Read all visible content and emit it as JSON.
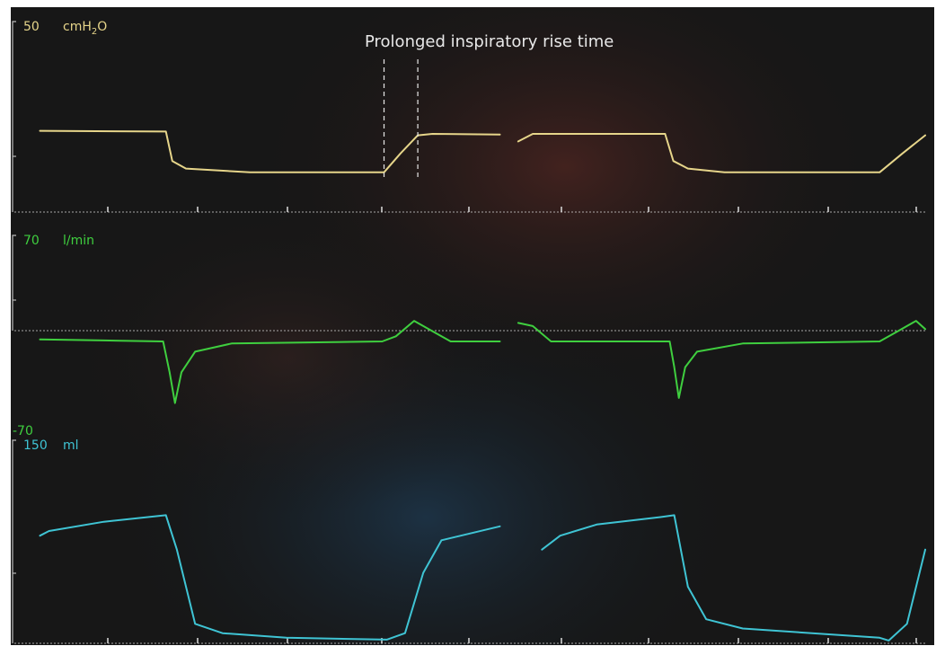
{
  "chart_data": [
    {
      "type": "line",
      "title": "",
      "unit_label": "cmH2O",
      "ylabel": "",
      "xlabel": "",
      "y_tick_labels": [
        "50"
      ],
      "ylim": [
        0,
        50
      ],
      "color": "#e6d58a",
      "grid": false,
      "annotation": {
        "text": "Prolonged inspiratory rise time",
        "marker_x": [
          40.7,
          44.4
        ]
      },
      "series": [
        {
          "values": [
            [
              3,
              30
            ],
            [
              16.8,
              29.5
            ],
            [
              17.5,
              10
            ],
            [
              19,
              5
            ],
            [
              26,
              2.5
            ],
            [
              40.7,
              2.5
            ],
            [
              42.5,
              15
            ],
            [
              44.4,
              27
            ],
            [
              46,
              28
            ],
            [
              53.4,
              27.5
            ],
            null,
            [
              55.4,
              23
            ],
            [
              57,
              28
            ],
            [
              71.5,
              28
            ],
            [
              72.4,
              10
            ],
            [
              74,
              5
            ],
            [
              78,
              2.5
            ],
            [
              95,
              2.5
            ],
            [
              97.5,
              15
            ],
            [
              100,
              27
            ]
          ]
        }
      ]
    },
    {
      "type": "line",
      "title": "",
      "unit_label": "l/min",
      "ylabel": "",
      "xlabel": "",
      "y_tick_labels": [
        "70",
        "-70"
      ],
      "ylim": [
        -70,
        70
      ],
      "color": "#3fcf3f",
      "grid": false,
      "series": [
        {
          "values": [
            [
              3,
              2
            ],
            [
              10,
              1
            ],
            [
              16.5,
              0
            ],
            [
              17.2,
              -30
            ],
            [
              17.8,
              -60
            ],
            [
              18.5,
              -30
            ],
            [
              20,
              -10
            ],
            [
              24,
              -2
            ],
            [
              40.5,
              0
            ],
            [
              42,
              5
            ],
            [
              44,
              20
            ],
            [
              46,
              10
            ],
            [
              48,
              0
            ],
            [
              53.4,
              0
            ],
            null,
            [
              55.4,
              18
            ],
            [
              57,
              15
            ],
            [
              59,
              0
            ],
            [
              72,
              0
            ],
            [
              72.5,
              -25
            ],
            [
              73,
              -55
            ],
            [
              73.7,
              -25
            ],
            [
              75,
              -10
            ],
            [
              80,
              -2
            ],
            [
              95,
              0
            ],
            [
              97,
              10
            ],
            [
              99,
              20
            ],
            [
              100,
              12
            ]
          ]
        }
      ]
    },
    {
      "type": "line",
      "title": "",
      "unit_label": "ml",
      "ylabel": "",
      "xlabel": "",
      "y_tick_labels": [
        "150"
      ],
      "ylim": [
        0,
        150
      ],
      "color": "#3fc4d4",
      "grid": false,
      "series": [
        {
          "values": [
            [
              3,
              115
            ],
            [
              4,
              120
            ],
            [
              10,
              130
            ],
            [
              16.8,
              137
            ],
            [
              18,
              100
            ],
            [
              20,
              20
            ],
            [
              23,
              10
            ],
            [
              30,
              5
            ],
            [
              41,
              3
            ],
            [
              43,
              10
            ],
            [
              45,
              75
            ],
            [
              47,
              110
            ],
            [
              53.4,
              125
            ],
            null,
            [
              58,
              100
            ],
            [
              60,
              115
            ],
            [
              64,
              127
            ],
            [
              71,
              135
            ],
            [
              72.5,
              137
            ],
            [
              74,
              60
            ],
            [
              76,
              25
            ],
            [
              80,
              15
            ],
            [
              95,
              5
            ],
            [
              96,
              2
            ],
            [
              98,
              20
            ],
            [
              100,
              100
            ]
          ]
        }
      ]
    }
  ]
}
